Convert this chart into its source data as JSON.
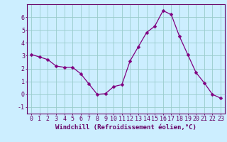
{
  "x": [
    0,
    1,
    2,
    3,
    4,
    5,
    6,
    7,
    8,
    9,
    10,
    11,
    12,
    13,
    14,
    15,
    16,
    17,
    18,
    19,
    20,
    21,
    22,
    23
  ],
  "y": [
    3.1,
    2.9,
    2.7,
    2.2,
    2.1,
    2.1,
    1.6,
    0.8,
    0.0,
    0.05,
    0.6,
    0.75,
    2.6,
    3.7,
    4.8,
    5.3,
    6.5,
    6.2,
    4.5,
    3.1,
    1.7,
    0.9,
    0.0,
    -0.3
  ],
  "line_color": "#800080",
  "marker": "D",
  "marker_size": 2.5,
  "bg_color": "#cceeff",
  "grid_color": "#99cccc",
  "axis_color": "#660066",
  "xlabel": "Windchill (Refroidissement éolien,°C)",
  "xlabel_fontsize": 6.5,
  "tick_fontsize": 6,
  "ylim": [
    -1.5,
    7.0
  ],
  "xlim": [
    -0.5,
    23.5
  ],
  "yticks": [
    -1,
    0,
    1,
    2,
    3,
    4,
    5,
    6
  ],
  "xticks": [
    0,
    1,
    2,
    3,
    4,
    5,
    6,
    7,
    8,
    9,
    10,
    11,
    12,
    13,
    14,
    15,
    16,
    17,
    18,
    19,
    20,
    21,
    22,
    23
  ],
  "figsize": [
    3.2,
    2.0
  ],
  "dpi": 100
}
